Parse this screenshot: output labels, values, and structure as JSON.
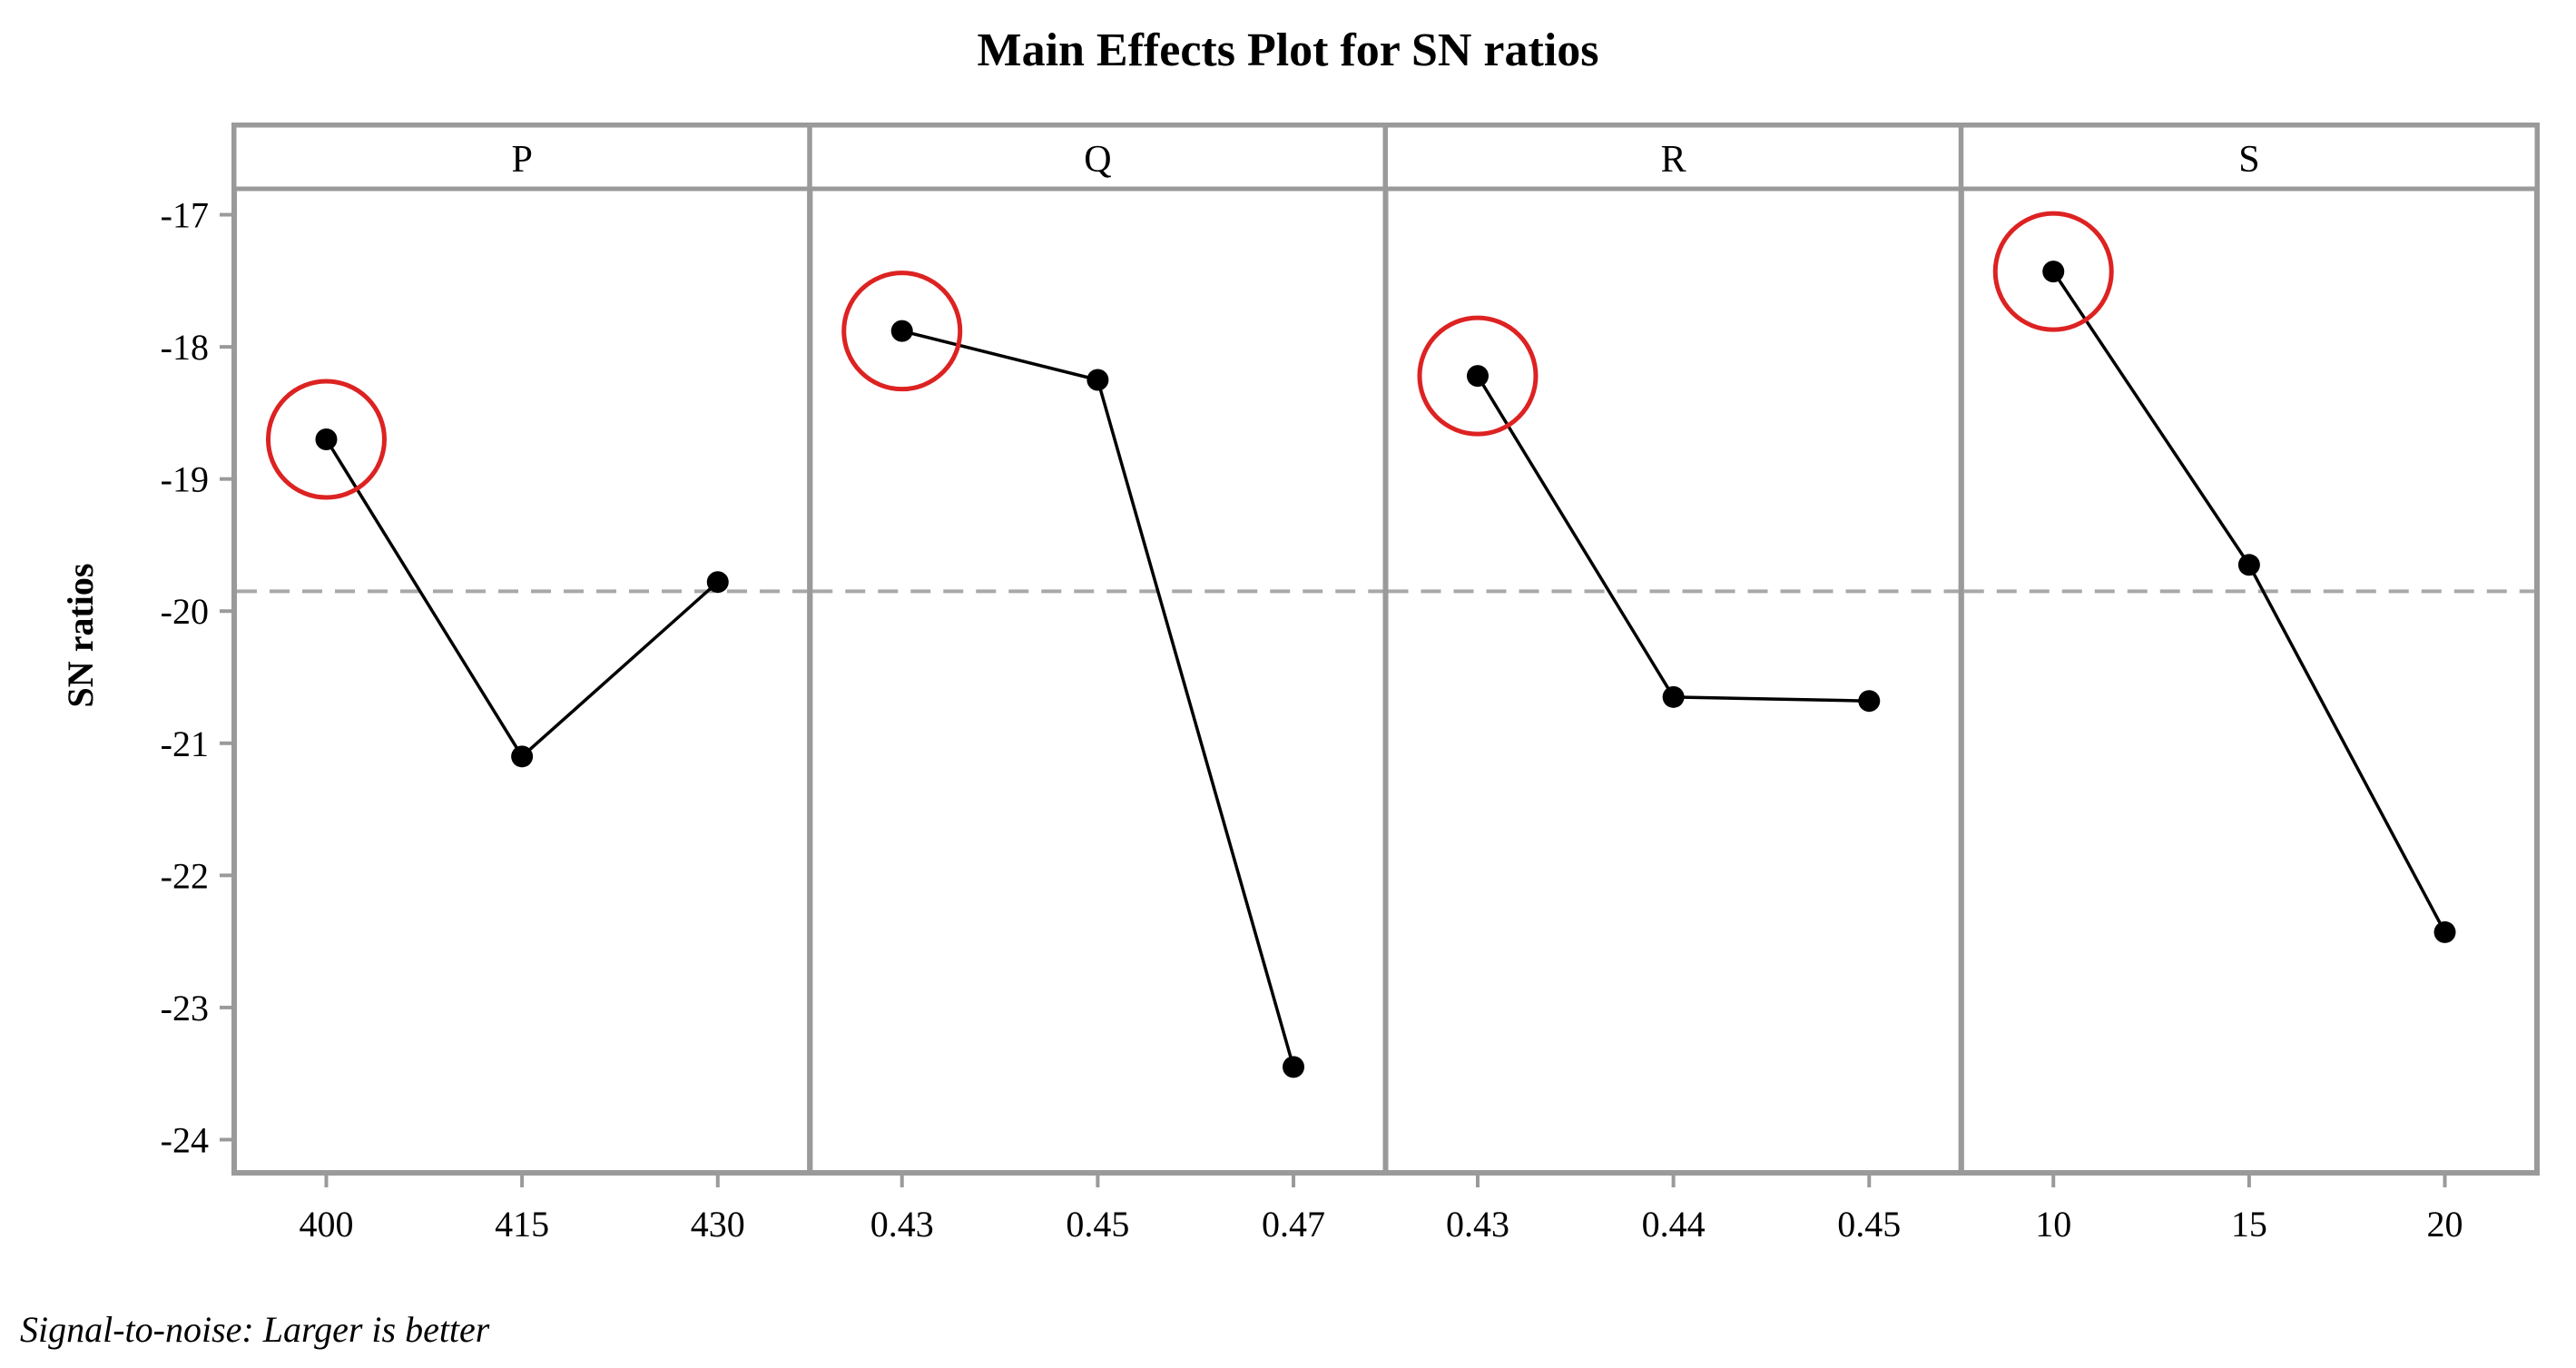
{
  "chart_data": {
    "type": "line",
    "title": "Main Effects Plot for SN ratios",
    "ylabel": "SN ratios",
    "footnote": "Signal-to-noise: Larger is better",
    "ylim": [
      -24.1,
      -16.9
    ],
    "yticks": [
      "-17",
      "-18",
      "-19",
      "-20",
      "-21",
      "-22",
      "-23",
      "-24"
    ],
    "ytick_values": [
      -17,
      -18,
      -19,
      -20,
      -21,
      -22,
      -23,
      -24
    ],
    "reference_line": -19.85,
    "panels": [
      {
        "label": "P",
        "categories": [
          "400",
          "415",
          "430"
        ],
        "values": [
          -18.7,
          -21.1,
          -19.78
        ],
        "highlight_index": 0
      },
      {
        "label": "Q",
        "categories": [
          "0.43",
          "0.45",
          "0.47"
        ],
        "values": [
          -17.88,
          -18.25,
          -23.45
        ],
        "highlight_index": 0
      },
      {
        "label": "R",
        "categories": [
          "0.43",
          "0.44",
          "0.45"
        ],
        "values": [
          -18.22,
          -20.65,
          -20.68
        ],
        "highlight_index": 0
      },
      {
        "label": "S",
        "categories": [
          "10",
          "15",
          "20"
        ],
        "values": [
          -17.43,
          -19.65,
          -22.43
        ],
        "highlight_index": 0
      }
    ],
    "colors": {
      "line": "#000000",
      "frame": "#9a9a9a",
      "reference": "#a8a8a8",
      "highlight": "#dd2222"
    }
  }
}
